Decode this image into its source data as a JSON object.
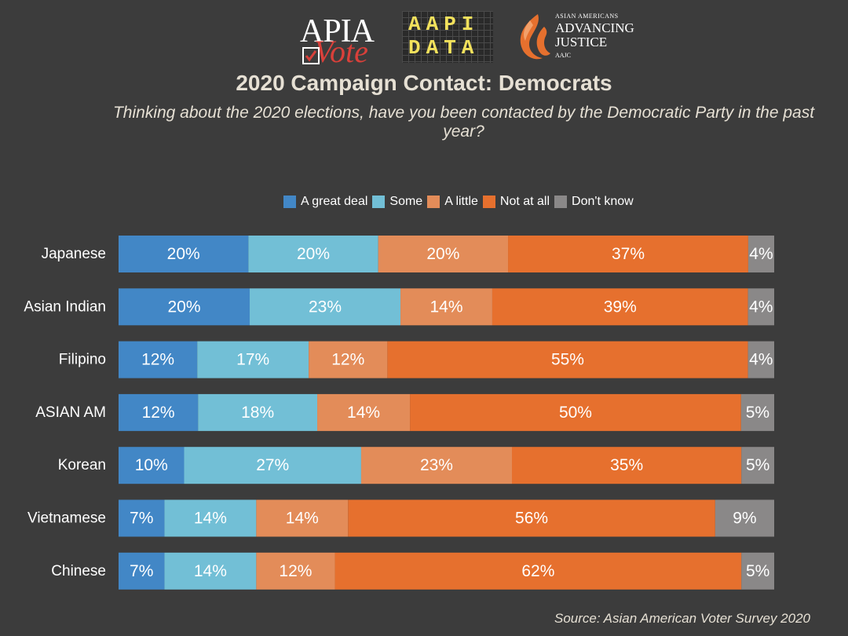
{
  "logos": {
    "apia": {
      "line1": "APIA",
      "line2": "Vote"
    },
    "aapi": {
      "line1": "AAPI",
      "line2": "DATA"
    },
    "aajc": {
      "small": "ASIAN AMERICANS",
      "big1": "ADVANCING",
      "big2": "JUSTICE",
      "abbr": "AAJC"
    }
  },
  "colors": {
    "background": "#3c3c3c",
    "great_deal": "#4287c6",
    "some": "#72bfd6",
    "a_little": "#e38c59",
    "not_at_all": "#e6702e",
    "dont_know": "#8a8888"
  },
  "chart_data": {
    "type": "bar",
    "orientation": "horizontal",
    "stacked": true,
    "title": "2020 Campaign Contact: Democrats",
    "subtitle": "Thinking about the 2020 elections, have you been contacted by the Democratic Party in the past year?",
    "source": "Source: Asian American Voter Survey 2020",
    "categories": [
      "Japanese",
      "Asian Indian",
      "Filipino",
      "ASIAN AM",
      "Korean",
      "Vietnamese",
      "Chinese"
    ],
    "series": [
      {
        "name": "A great deal",
        "color": "#4287c6",
        "values": [
          20,
          20,
          12,
          12,
          10,
          7,
          7
        ]
      },
      {
        "name": "Some",
        "color": "#72bfd6",
        "values": [
          20,
          23,
          17,
          18,
          27,
          14,
          14
        ]
      },
      {
        "name": "A little",
        "color": "#e38c59",
        "values": [
          20,
          14,
          12,
          14,
          23,
          14,
          12
        ]
      },
      {
        "name": "Not at all",
        "color": "#e6702e",
        "values": [
          37,
          39,
          55,
          50,
          35,
          56,
          62
        ]
      },
      {
        "name": "Don't know",
        "color": "#8a8888",
        "values": [
          4,
          4,
          4,
          5,
          5,
          9,
          5
        ]
      }
    ],
    "value_suffix": "%",
    "legend_position": "top"
  }
}
